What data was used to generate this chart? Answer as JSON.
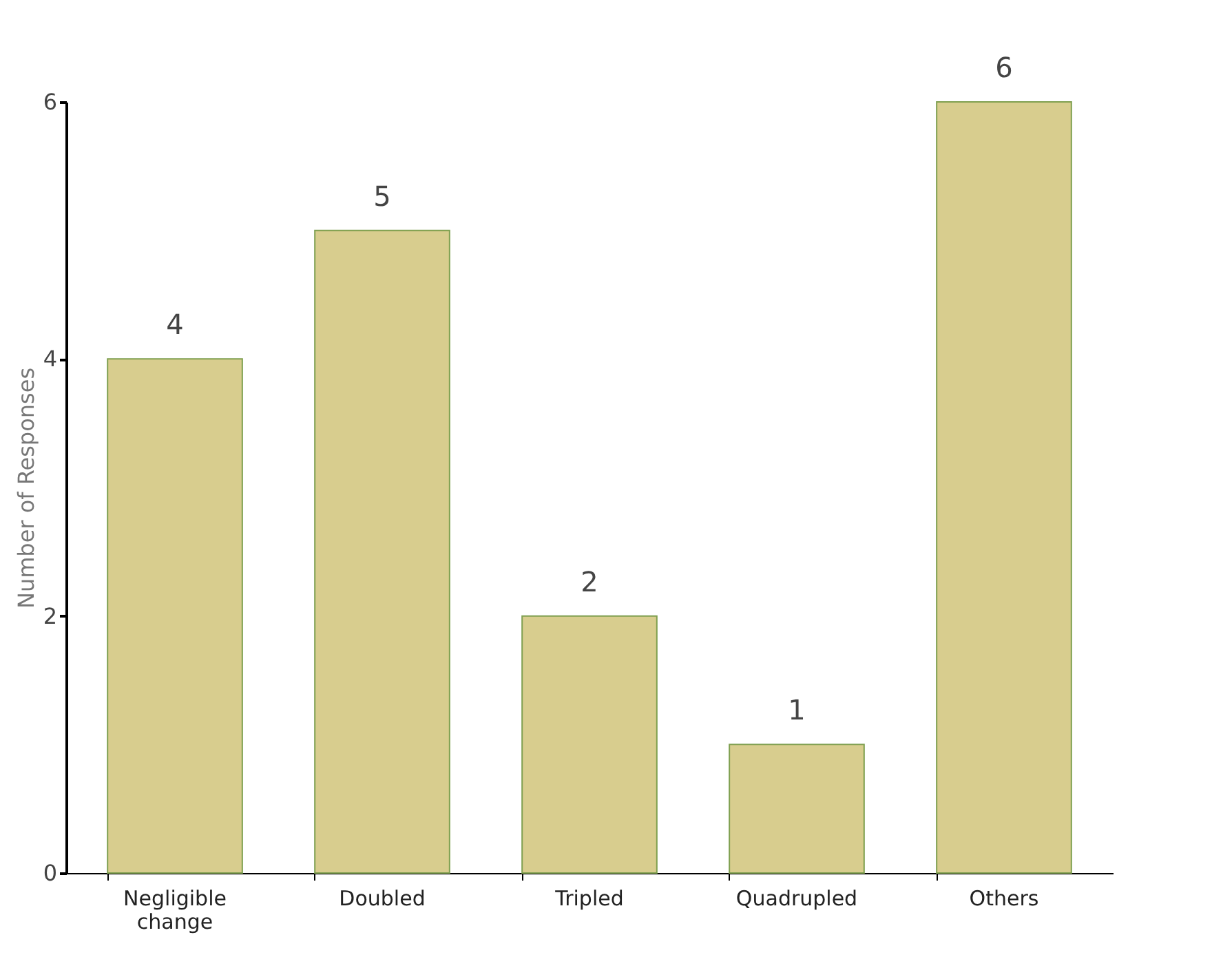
{
  "chart_data": {
    "type": "bar",
    "ylabel": "Number of Responses",
    "categories": [
      "Negligible change",
      "Doubled",
      "Tripled",
      "Quadrupled",
      "Others"
    ],
    "values": [
      4,
      5,
      2,
      1,
      6
    ],
    "color": "#d8cd8e",
    "ylim": [
      0,
      6
    ],
    "yticks": [
      0,
      2,
      4,
      6
    ],
    "grid": false,
    "data_labels": true
  }
}
